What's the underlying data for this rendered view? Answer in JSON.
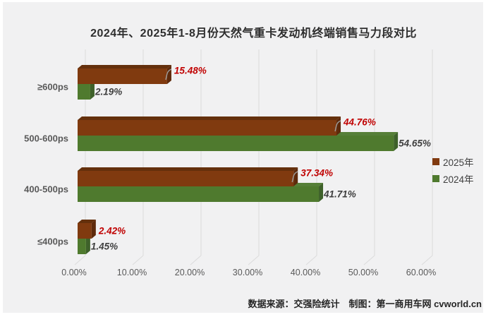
{
  "title": "2024年、2025年1-8月份天然气重卡发动机终端销售马力段对比",
  "footer": {
    "text": "数据来源：交强险统计　制图：第一商用车网 cvworld.cn"
  },
  "colors": {
    "page_background": "#FFFFFF",
    "panel_background": "#F1F1F2",
    "gridline": "#DBDBDB",
    "axis_text": "#595959",
    "title_text": "#2E2E2E",
    "leader_line": "#9E9E9E"
  },
  "legend": {
    "position": "right",
    "items": [
      {
        "label": "2025年",
        "color": "#803A0F"
      },
      {
        "label": "2024年",
        "color": "#4F7A2E"
      }
    ]
  },
  "chart_data": {
    "type": "bar",
    "orientation": "horizontal",
    "style": "3d",
    "title": "2024年、2025年1-8月份天然气重卡发动机终端销售马力段对比",
    "categories": [
      "≥600ps",
      "500-600ps",
      "400-500ps",
      "≤400ps"
    ],
    "series": [
      {
        "name": "2025年",
        "values": [
          15.48,
          44.76,
          37.34,
          2.42
        ],
        "labels": [
          "15.48%",
          "44.76%",
          "37.34%",
          "2.42%"
        ],
        "color": "#803A0F",
        "top_color": "#64300C",
        "side_color": "#5E2A0B",
        "label_color": "#C00000",
        "leader_lines": [
          true,
          true,
          true,
          false
        ]
      },
      {
        "name": "2024年",
        "values": [
          2.19,
          54.65,
          41.71,
          1.45
        ],
        "labels": [
          "2.19%",
          "54.65%",
          "41.71%",
          "1.45%"
        ],
        "color": "#4F7A2E",
        "top_color": "#567F38",
        "side_color": "#3E612A",
        "label_color": "#3F3F3F",
        "leader_lines": [
          false,
          false,
          false,
          false
        ]
      }
    ],
    "x_ticks": [
      "0.00%",
      "10.00%",
      "20.00%",
      "30.00%",
      "40.00%",
      "50.00%",
      "60.00%"
    ],
    "xlim": [
      0,
      60
    ],
    "grid": true,
    "xlabel": "",
    "ylabel": "",
    "legend_position": "right"
  }
}
